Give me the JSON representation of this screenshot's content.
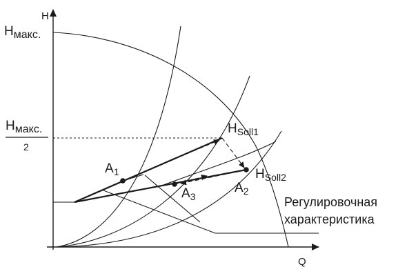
{
  "axes": {
    "y_label": "H",
    "x_label": "Q"
  },
  "labels": {
    "h_max_main": "H",
    "h_max_sub": "макс.",
    "h_half_num_main": "H",
    "h_half_num_sub": "макс.",
    "h_half_den": "2",
    "h_soll1_main": "H",
    "h_soll1_sub": "Soll1",
    "h_soll2_main": "H",
    "h_soll2_sub": "Soll2",
    "a1_main": "A",
    "a1_sub": "1",
    "a2_main": "A",
    "a2_sub": "2",
    "a3_main": "A",
    "a3_sub": "3",
    "control_line1": "Регулировочная",
    "control_line2": "характеристика"
  },
  "colors": {
    "ink": "#1a1a1a",
    "background": "#ffffff"
  }
}
